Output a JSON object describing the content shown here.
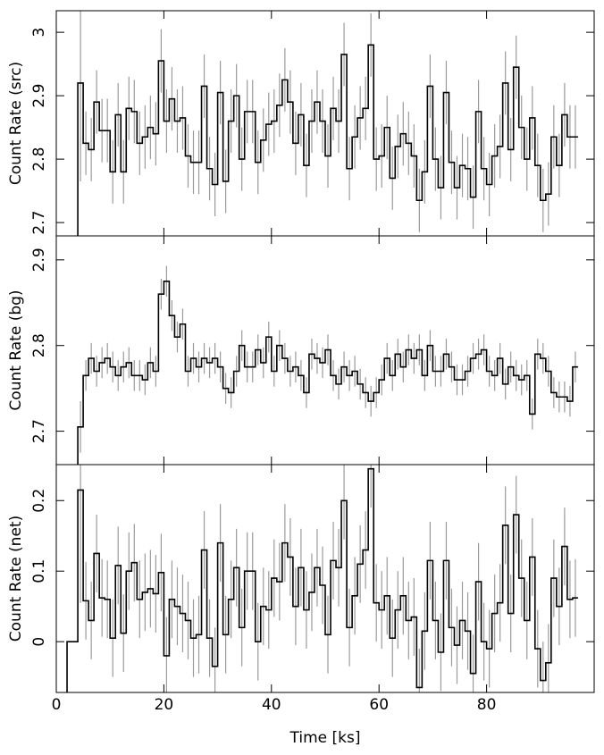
{
  "chart_data": [
    {
      "type": "step",
      "ylabel": "Count Rate (src)",
      "xlim": [
        0,
        100
      ],
      "xticks": [
        0,
        20,
        40,
        60,
        80
      ],
      "ylim": [
        2.679,
        3.034
      ],
      "yticks": [
        2.7,
        2.8,
        2.9,
        3
      ],
      "series": [
        {
          "color": "#000000",
          "error_color": "#9a9a9a",
          "x": [
            4.5,
            5.5,
            6.5,
            7.5,
            8.5,
            9.5,
            10.5,
            11.5,
            12.5,
            13.5,
            14.5,
            15.5,
            16.5,
            17.5,
            18.5,
            19.5,
            20.5,
            21.5,
            22.5,
            23.5,
            24.5,
            25.5,
            26.5,
            27.5,
            28.5,
            29.5,
            30.5,
            31.5,
            32.5,
            33.5,
            34.5,
            35.5,
            36.5,
            37.5,
            38.5,
            39.5,
            40.5,
            41.5,
            42.5,
            43.5,
            44.5,
            45.5,
            46.5,
            47.5,
            48.5,
            49.5,
            50.5,
            51.5,
            52.5,
            53.5,
            54.5,
            55.5,
            56.5,
            57.5,
            58.5,
            59.5,
            60.5,
            61.5,
            62.5,
            63.5,
            64.5,
            65.5,
            66.5,
            67.5,
            68.5,
            69.5,
            70.5,
            71.5,
            72.5,
            73.5,
            74.5,
            75.5,
            76.5,
            77.5,
            78.5,
            79.5,
            80.5,
            81.5,
            82.5,
            83.5,
            84.5,
            85.5,
            86.5,
            87.5,
            88.5,
            89.5,
            90.5,
            91.5,
            92.5,
            93.5,
            94.5,
            95.5,
            96.5
          ],
          "values": [
            2.92,
            2.825,
            2.815,
            2.89,
            2.845,
            2.845,
            2.78,
            2.87,
            2.78,
            2.88,
            2.875,
            2.825,
            2.835,
            2.85,
            2.84,
            2.955,
            2.86,
            2.895,
            2.86,
            2.865,
            2.805,
            2.795,
            2.795,
            2.915,
            2.785,
            2.76,
            2.905,
            2.765,
            2.86,
            2.9,
            2.8,
            2.875,
            2.875,
            2.795,
            2.83,
            2.855,
            2.86,
            2.885,
            2.925,
            2.89,
            2.825,
            2.87,
            2.79,
            2.86,
            2.89,
            2.86,
            2.805,
            2.88,
            2.86,
            2.965,
            2.785,
            2.835,
            2.865,
            2.88,
            2.98,
            2.8,
            2.805,
            2.85,
            2.77,
            2.82,
            2.84,
            2.825,
            2.805,
            2.735,
            2.78,
            2.915,
            2.8,
            2.755,
            2.905,
            2.795,
            2.755,
            2.79,
            2.785,
            2.74,
            2.875,
            2.785,
            2.76,
            2.805,
            2.82,
            2.92,
            2.815,
            2.945,
            2.85,
            2.8,
            2.865,
            2.79,
            2.735,
            2.745,
            2.835,
            2.79,
            2.87,
            2.835,
            2.835
          ],
          "errors": [
            0.155,
            0.05,
            0.05,
            0.05,
            0.05,
            0.05,
            0.05,
            0.05,
            0.05,
            0.05,
            0.05,
            0.05,
            0.05,
            0.05,
            0.05,
            0.05,
            0.05,
            0.05,
            0.05,
            0.05,
            0.05,
            0.05,
            0.05,
            0.05,
            0.05,
            0.05,
            0.05,
            0.05,
            0.05,
            0.05,
            0.05,
            0.05,
            0.05,
            0.05,
            0.05,
            0.05,
            0.05,
            0.05,
            0.05,
            0.05,
            0.05,
            0.05,
            0.05,
            0.05,
            0.05,
            0.05,
            0.05,
            0.05,
            0.05,
            0.05,
            0.05,
            0.05,
            0.05,
            0.05,
            0.05,
            0.05,
            0.05,
            0.05,
            0.05,
            0.05,
            0.05,
            0.05,
            0.05,
            0.05,
            0.05,
            0.05,
            0.05,
            0.05,
            0.05,
            0.05,
            0.05,
            0.05,
            0.05,
            0.05,
            0.05,
            0.05,
            0.05,
            0.05,
            0.05,
            0.05,
            0.05,
            0.05,
            0.05,
            0.05,
            0.05,
            0.05,
            0.05,
            0.05,
            0.05,
            0.05,
            0.05,
            0.05,
            0.05
          ]
        }
      ]
    },
    {
      "type": "step",
      "ylabel": "Count Rate (bg)",
      "xlim": [
        0,
        100
      ],
      "xticks": [
        0,
        20,
        40,
        60,
        80
      ],
      "ylim": [
        2.661,
        2.928
      ],
      "yticks": [
        2.7,
        2.8,
        2.9
      ],
      "series": [
        {
          "color": "#000000",
          "error_color": "#9a9a9a",
          "x": [
            4.5,
            5.5,
            6.5,
            7.5,
            8.5,
            9.5,
            10.5,
            11.5,
            12.5,
            13.5,
            14.5,
            15.5,
            16.5,
            17.5,
            18.5,
            19.5,
            20.5,
            21.5,
            22.5,
            23.5,
            24.5,
            25.5,
            26.5,
            27.5,
            28.5,
            29.5,
            30.5,
            31.5,
            32.5,
            33.5,
            34.5,
            35.5,
            36.5,
            37.5,
            38.5,
            39.5,
            40.5,
            41.5,
            42.5,
            43.5,
            44.5,
            45.5,
            46.5,
            47.5,
            48.5,
            49.5,
            50.5,
            51.5,
            52.5,
            53.5,
            54.5,
            55.5,
            56.5,
            57.5,
            58.5,
            59.5,
            60.5,
            61.5,
            62.5,
            63.5,
            64.5,
            65.5,
            66.5,
            67.5,
            68.5,
            69.5,
            70.5,
            71.5,
            72.5,
            73.5,
            74.5,
            75.5,
            76.5,
            77.5,
            78.5,
            79.5,
            80.5,
            81.5,
            82.5,
            83.5,
            84.5,
            85.5,
            86.5,
            87.5,
            88.5,
            89.5,
            90.5,
            91.5,
            92.5,
            93.5,
            94.5,
            95.5,
            96.5
          ],
          "values": [
            2.705,
            2.765,
            2.785,
            2.77,
            2.78,
            2.785,
            2.775,
            2.765,
            2.775,
            2.78,
            2.765,
            2.765,
            2.76,
            2.78,
            2.77,
            2.86,
            2.875,
            2.835,
            2.81,
            2.825,
            2.77,
            2.785,
            2.775,
            2.785,
            2.78,
            2.785,
            2.775,
            2.75,
            2.745,
            2.77,
            2.8,
            2.775,
            2.775,
            2.795,
            2.78,
            2.81,
            2.77,
            2.8,
            2.785,
            2.77,
            2.775,
            2.765,
            2.745,
            2.79,
            2.785,
            2.78,
            2.795,
            2.765,
            2.755,
            2.775,
            2.765,
            2.77,
            2.755,
            2.745,
            2.735,
            2.745,
            2.76,
            2.785,
            2.765,
            2.79,
            2.775,
            2.795,
            2.785,
            2.795,
            2.765,
            2.8,
            2.77,
            2.77,
            2.79,
            2.775,
            2.76,
            2.76,
            2.77,
            2.785,
            2.79,
            2.795,
            2.77,
            2.765,
            2.785,
            2.755,
            2.775,
            2.765,
            2.76,
            2.765,
            2.72,
            2.79,
            2.785,
            2.77,
            2.745,
            2.74,
            2.74,
            2.735,
            2.775
          ],
          "errors": [
            0.03,
            0.018,
            0.018,
            0.018,
            0.018,
            0.018,
            0.018,
            0.018,
            0.018,
            0.018,
            0.018,
            0.018,
            0.018,
            0.018,
            0.018,
            0.018,
            0.018,
            0.018,
            0.018,
            0.018,
            0.018,
            0.018,
            0.018,
            0.018,
            0.018,
            0.018,
            0.018,
            0.018,
            0.018,
            0.018,
            0.018,
            0.018,
            0.018,
            0.018,
            0.018,
            0.018,
            0.018,
            0.018,
            0.018,
            0.018,
            0.018,
            0.018,
            0.018,
            0.018,
            0.018,
            0.018,
            0.018,
            0.018,
            0.018,
            0.018,
            0.018,
            0.018,
            0.018,
            0.018,
            0.018,
            0.018,
            0.018,
            0.018,
            0.018,
            0.018,
            0.018,
            0.018,
            0.018,
            0.018,
            0.018,
            0.018,
            0.018,
            0.018,
            0.018,
            0.018,
            0.018,
            0.018,
            0.018,
            0.018,
            0.018,
            0.018,
            0.018,
            0.018,
            0.018,
            0.018,
            0.018,
            0.018,
            0.018,
            0.018,
            0.018,
            0.018,
            0.018,
            0.018,
            0.018,
            0.018,
            0.018,
            0.018,
            0.018
          ]
        }
      ]
    },
    {
      "type": "step",
      "ylabel": "Count Rate (net)",
      "xlabel": "Time [ks]",
      "xlim": [
        0,
        100
      ],
      "xticks": [
        0,
        20,
        40,
        60,
        80
      ],
      "ylim": [
        -0.072,
        0.251
      ],
      "yticks": [
        0,
        0.1,
        0.2
      ],
      "series": [
        {
          "color": "#000000",
          "error_color": "#9a9a9a",
          "x": [
            2.5,
            3.5,
            4.5,
            5.5,
            6.5,
            7.5,
            8.5,
            9.5,
            10.5,
            11.5,
            12.5,
            13.5,
            14.5,
            15.5,
            16.5,
            17.5,
            18.5,
            19.5,
            20.5,
            21.5,
            22.5,
            23.5,
            24.5,
            25.5,
            26.5,
            27.5,
            28.5,
            29.5,
            30.5,
            31.5,
            32.5,
            33.5,
            34.5,
            35.5,
            36.5,
            37.5,
            38.5,
            39.5,
            40.5,
            41.5,
            42.5,
            43.5,
            44.5,
            45.5,
            46.5,
            47.5,
            48.5,
            49.5,
            50.5,
            51.5,
            52.5,
            53.5,
            54.5,
            55.5,
            56.5,
            57.5,
            58.5,
            59.5,
            60.5,
            61.5,
            62.5,
            63.5,
            64.5,
            65.5,
            66.5,
            67.5,
            68.5,
            69.5,
            70.5,
            71.5,
            72.5,
            73.5,
            74.5,
            75.5,
            76.5,
            77.5,
            78.5,
            79.5,
            80.5,
            81.5,
            82.5,
            83.5,
            84.5,
            85.5,
            86.5,
            87.5,
            88.5,
            89.5,
            90.5,
            91.5,
            92.5,
            93.5,
            94.5,
            95.5,
            96.5
          ],
          "values": [
            0,
            0,
            0.215,
            0.058,
            0.03,
            0.125,
            0.062,
            0.06,
            0.005,
            0.108,
            0.012,
            0.1,
            0.112,
            0.06,
            0.07,
            0.075,
            0.068,
            0.098,
            -0.02,
            0.06,
            0.05,
            0.04,
            0.03,
            0.005,
            0.01,
            0.13,
            0.005,
            -0.035,
            0.14,
            0.01,
            0.06,
            0.105,
            0.02,
            0.1,
            0.1,
            0.0,
            0.05,
            0.045,
            0.09,
            0.085,
            0.14,
            0.12,
            0.05,
            0.105,
            0.045,
            0.07,
            0.105,
            0.08,
            0.01,
            0.115,
            0.105,
            0.2,
            0.02,
            0.065,
            0.11,
            0.13,
            0.245,
            0.055,
            0.045,
            0.065,
            0.005,
            0.045,
            0.065,
            0.03,
            0.035,
            -0.065,
            0.015,
            0.115,
            0.03,
            -0.015,
            0.115,
            0.02,
            -0.005,
            0.03,
            0.015,
            -0.045,
            0.085,
            0.0,
            -0.01,
            0.04,
            0.055,
            0.165,
            0.04,
            0.18,
            0.09,
            0.03,
            0.12,
            -0.01,
            -0.055,
            -0.03,
            0.09,
            0.05,
            0.135,
            0.06,
            0.062
          ],
          "errors": [
            null,
            null,
            0.16,
            0.055,
            0.055,
            0.055,
            0.055,
            0.055,
            0.055,
            0.055,
            0.055,
            0.055,
            0.055,
            0.055,
            0.055,
            0.055,
            0.055,
            0.055,
            0.055,
            0.055,
            0.055,
            0.055,
            0.055,
            0.055,
            0.055,
            0.055,
            0.055,
            0.055,
            0.055,
            0.055,
            0.055,
            0.055,
            0.055,
            0.055,
            0.055,
            0.055,
            0.055,
            0.055,
            0.055,
            0.055,
            0.055,
            0.055,
            0.055,
            0.055,
            0.055,
            0.055,
            0.055,
            0.055,
            0.055,
            0.055,
            0.055,
            0.055,
            0.055,
            0.055,
            0.055,
            0.055,
            0.055,
            0.055,
            0.055,
            0.055,
            0.055,
            0.055,
            0.055,
            0.055,
            0.055,
            0.055,
            0.055,
            0.055,
            0.055,
            0.055,
            0.055,
            0.055,
            0.055,
            0.055,
            0.055,
            0.055,
            0.055,
            0.055,
            0.055,
            0.055,
            0.055,
            0.055,
            0.055,
            0.055,
            0.055,
            0.055,
            0.055,
            0.055,
            0.055,
            0.055,
            0.055,
            0.055,
            0.055,
            0.055,
            0.055
          ]
        }
      ]
    }
  ]
}
